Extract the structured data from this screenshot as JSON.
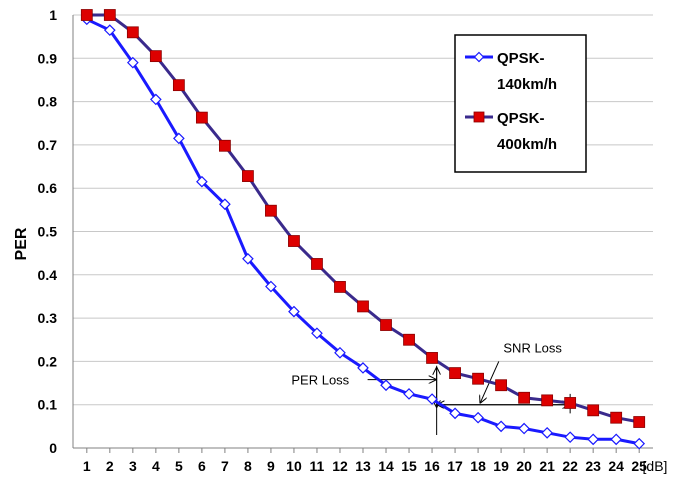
{
  "chart_data": {
    "type": "line",
    "ylabel": "PER",
    "x_unit": "[dB]",
    "x": [
      1,
      2,
      3,
      4,
      5,
      6,
      7,
      8,
      9,
      10,
      11,
      12,
      13,
      14,
      15,
      16,
      17,
      18,
      19,
      20,
      21,
      22,
      23,
      24,
      25
    ],
    "ylim": [
      0,
      1
    ],
    "yticks": [
      "0",
      "0.1",
      "0.2",
      "0.3",
      "0.4",
      "0.5",
      "0.6",
      "0.7",
      "0.8",
      "0.9",
      "1"
    ],
    "grid": true,
    "legend_position": "top-right",
    "series": [
      {
        "name_lines": [
          "QPSK-",
          "140km/h"
        ],
        "color": "#1a1aff",
        "marker": "diamond",
        "values": [
          0.99,
          0.965,
          0.89,
          0.805,
          0.715,
          0.615,
          0.563,
          0.437,
          0.373,
          0.315,
          0.265,
          0.22,
          0.185,
          0.145,
          0.125,
          0.113,
          0.08,
          0.07,
          0.05,
          0.045,
          0.035,
          0.025,
          0.02,
          0.02,
          0.01
        ]
      },
      {
        "name_lines": [
          "QPSK-",
          "400km/h"
        ],
        "color": "#3a2a8c",
        "marker_color": "#dd0000",
        "marker": "square",
        "values": [
          1.0,
          1.0,
          0.96,
          0.905,
          0.838,
          0.763,
          0.698,
          0.628,
          0.548,
          0.478,
          0.425,
          0.372,
          0.327,
          0.284,
          0.25,
          0.208,
          0.173,
          0.16,
          0.145,
          0.116,
          0.11,
          0.104,
          0.087,
          0.07,
          0.06
        ]
      }
    ],
    "annotations": {
      "per_loss": "PER Loss",
      "snr_loss": "SNR Loss"
    }
  }
}
